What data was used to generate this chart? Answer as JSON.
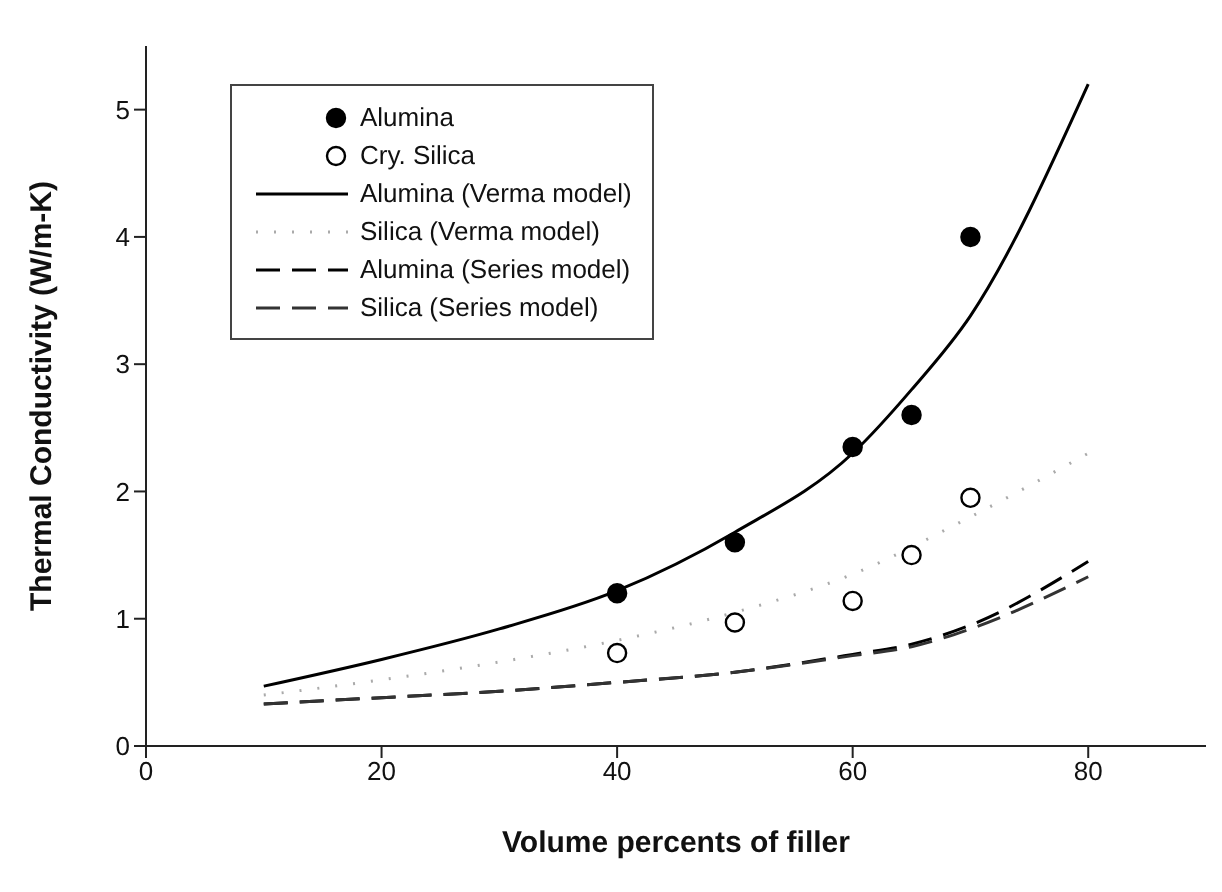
{
  "chart_data": {
    "type": "line",
    "xlabel": "Volume percents of filler",
    "ylabel": "Thermal Conductivity (W/m-K)",
    "xlim": [
      0,
      90
    ],
    "ylim": [
      0,
      5.5
    ],
    "xticks": [
      0,
      20,
      40,
      60,
      80
    ],
    "yticks": [
      0,
      1,
      2,
      3,
      4,
      5
    ],
    "grid": false,
    "legend": "top left",
    "series": [
      {
        "name": "Alumina",
        "type": "scatter",
        "marker": "circle",
        "color": "#000000",
        "x": [
          40,
          50,
          60,
          65,
          70
        ],
        "values": [
          1.2,
          1.6,
          2.35,
          2.6,
          4.0
        ]
      },
      {
        "name": "Cry. Silica",
        "type": "scatter",
        "marker": "circle",
        "color": "#ffffff",
        "x": [
          40,
          50,
          60,
          65,
          70
        ],
        "values": [
          0.73,
          0.97,
          1.14,
          1.5,
          1.95
        ]
      },
      {
        "name": "Alumina (Verma model)",
        "type": "line",
        "line_style": "solid",
        "color": "#000000",
        "x": [
          10,
          20,
          30,
          40,
          50,
          60,
          65,
          70,
          80
        ],
        "values": [
          0.47,
          0.68,
          0.92,
          1.22,
          1.68,
          2.3,
          2.8,
          3.38,
          5.2
        ]
      },
      {
        "name": "Silica (Verma model)",
        "type": "line",
        "line_style": "dotted",
        "color": "#aaaaaa",
        "x": [
          10,
          20,
          30,
          40,
          50,
          60,
          70,
          80
        ],
        "values": [
          0.4,
          0.52,
          0.66,
          0.83,
          1.05,
          1.35,
          1.8,
          2.3
        ]
      },
      {
        "name": "Alumina (Series model)",
        "type": "line",
        "line_style": "dashed",
        "color": "#000000",
        "x": [
          10,
          20,
          30,
          40,
          50,
          60,
          65,
          70,
          80
        ],
        "values": [
          0.33,
          0.38,
          0.43,
          0.5,
          0.58,
          0.72,
          0.8,
          0.95,
          1.45
        ]
      },
      {
        "name": "Silica (Series model)",
        "type": "line",
        "line_style": "dashed",
        "color": "#333333",
        "x": [
          10,
          20,
          30,
          40,
          50,
          60,
          65,
          70,
          80
        ],
        "values": [
          0.33,
          0.38,
          0.43,
          0.5,
          0.58,
          0.71,
          0.78,
          0.92,
          1.33
        ]
      }
    ]
  }
}
